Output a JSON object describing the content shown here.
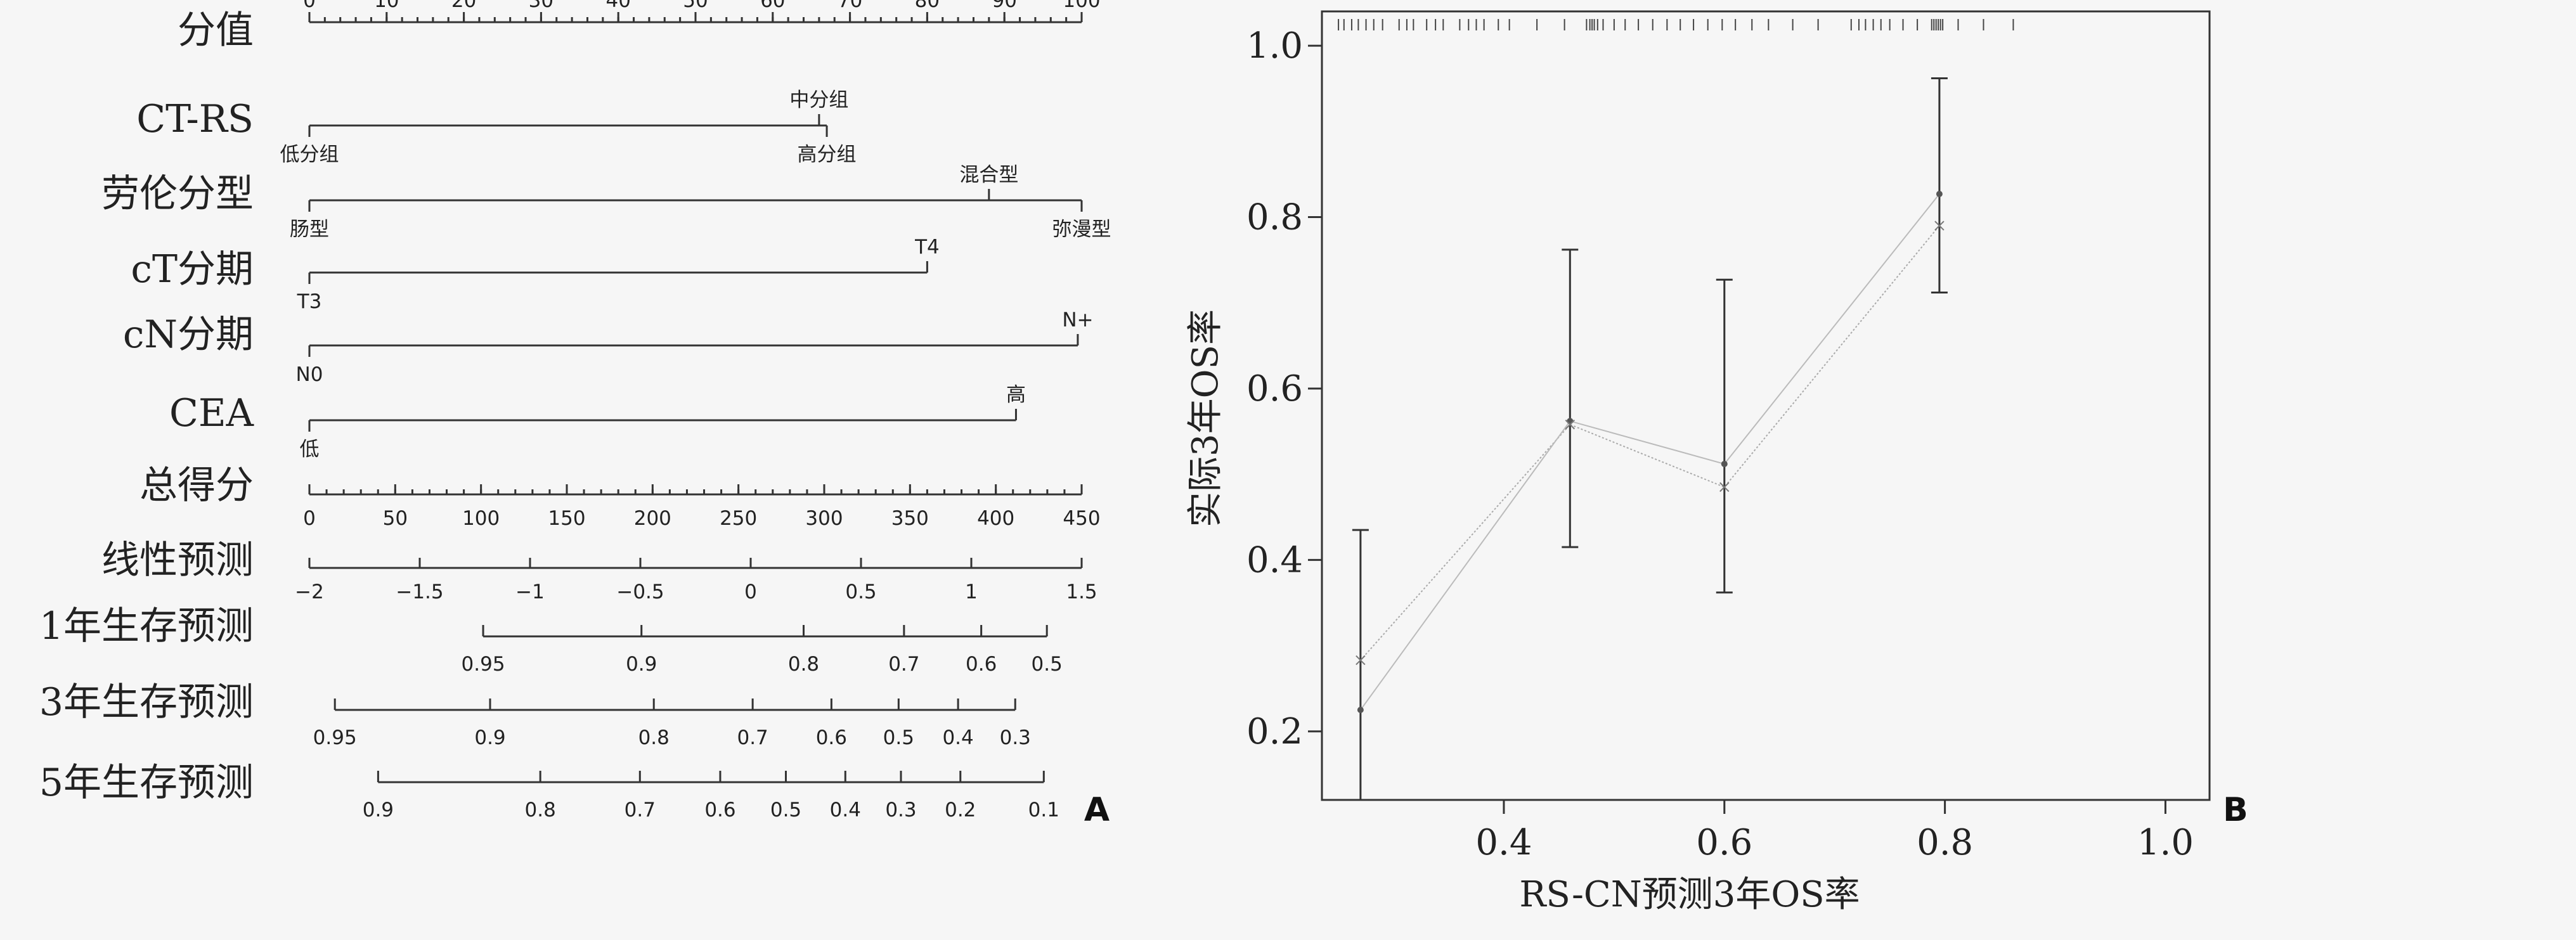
{
  "chart_data": [
    {
      "type": "nomogram",
      "panel_label": "A",
      "rows": [
        {
          "label": "分值",
          "kind": "axis",
          "min": 0,
          "max": 100,
          "major": [
            0,
            10,
            20,
            30,
            40,
            50,
            60,
            70,
            80,
            90,
            100
          ],
          "major_labels": [
            "0",
            "10",
            "20",
            "30",
            "40",
            "50",
            "60",
            "70",
            "80",
            "90",
            "100"
          ],
          "minor_step": 2,
          "label_side": "top"
        },
        {
          "label": "CT-RS",
          "kind": "variable",
          "levels": [
            {
              "name": "低分组",
              "points": 0,
              "side": "below"
            },
            {
              "name": "中分组",
              "points": 66,
              "side": "above"
            },
            {
              "name": "高分组",
              "points": 67,
              "side": "below"
            }
          ]
        },
        {
          "label": "劳伦分型",
          "kind": "variable",
          "levels": [
            {
              "name": "肠型",
              "points": 0,
              "side": "below"
            },
            {
              "name": "混合型",
              "points": 88,
              "side": "above"
            },
            {
              "name": "弥漫型",
              "points": 100,
              "side": "below"
            }
          ]
        },
        {
          "label": "cT分期",
          "kind": "variable",
          "levels": [
            {
              "name": "T3",
              "points": 0,
              "side": "below"
            },
            {
              "name": "T4",
              "points": 80,
              "side": "above"
            }
          ]
        },
        {
          "label": "cN分期",
          "kind": "variable",
          "levels": [
            {
              "name": "N0",
              "points": 0,
              "side": "below"
            },
            {
              "name": "N+",
              "points": 99.5,
              "side": "above"
            }
          ]
        },
        {
          "label": "CEA",
          "kind": "variable",
          "levels": [
            {
              "name": "低",
              "points": 0,
              "side": "below"
            },
            {
              "name": "高",
              "points": 91.5,
              "side": "above"
            }
          ]
        },
        {
          "label": "总得分",
          "kind": "axis",
          "min": 0,
          "max": 450,
          "major": [
            0,
            50,
            100,
            150,
            200,
            250,
            300,
            350,
            400,
            450
          ],
          "major_labels": [
            "0",
            "50",
            "100",
            "150",
            "200",
            "250",
            "300",
            "350",
            "400",
            "450"
          ],
          "minor_step": 10,
          "label_side": "bottom"
        },
        {
          "label": "线性预测",
          "kind": "axis",
          "min": -2,
          "max": 1.5,
          "major": [
            -2,
            -1.5,
            -1,
            -0.5,
            0,
            0.5,
            1,
            1.5
          ],
          "major_labels": [
            "−2",
            "−1.5",
            "−1",
            "−0.5",
            "0",
            "0.5",
            "1",
            "1.5"
          ],
          "minor_step": 0.5,
          "label_side": "bottom"
        },
        {
          "label": "1年生存预测",
          "kind": "prob",
          "ticks": [
            {
              "t": "0.95",
              "p": 22.5
            },
            {
              "t": "0.9",
              "p": 43
            },
            {
              "t": "0.8",
              "p": 64
            },
            {
              "t": "0.7",
              "p": 77
            },
            {
              "t": "0.6",
              "p": 87
            },
            {
              "t": "0.5",
              "p": 95.5
            }
          ]
        },
        {
          "label": "3年生存预测",
          "kind": "prob",
          "ticks": [
            {
              "t": "0.95",
              "p": 3.3
            },
            {
              "t": "0.9",
              "p": 23.4
            },
            {
              "t": "0.8",
              "p": 44.6
            },
            {
              "t": "0.7",
              "p": 57.4
            },
            {
              "t": "0.6",
              "p": 67.6
            },
            {
              "t": "0.5",
              "p": 76.3
            },
            {
              "t": "0.4",
              "p": 84
            },
            {
              "t": "0.3",
              "p": 91.4
            }
          ]
        },
        {
          "label": "5年生存预测",
          "kind": "prob",
          "ticks": [
            {
              "t": "0.9",
              "p": 8.9
            },
            {
              "t": "0.8",
              "p": 29.9
            },
            {
              "t": "0.7",
              "p": 42.8
            },
            {
              "t": "0.6",
              "p": 53.2
            },
            {
              "t": "0.5",
              "p": 61.7
            },
            {
              "t": "0.4",
              "p": 69.4
            },
            {
              "t": "0.3",
              "p": 76.6
            },
            {
              "t": "0.2",
              "p": 84.3
            },
            {
              "t": "0.1",
              "p": 95.1
            }
          ]
        }
      ]
    },
    {
      "type": "calibration",
      "panel_label": "B",
      "xlabel": "RS-CN预测3年OS率",
      "ylabel": "实际3年OS率",
      "xlim": [
        0.235,
        1.04
      ],
      "ylim": [
        0.12,
        1.04
      ],
      "xticks": [
        0.4,
        0.6,
        0.8,
        1.0
      ],
      "xtick_labels": [
        "0.4",
        "0.6",
        "0.8",
        "1.0"
      ],
      "yticks": [
        0.2,
        0.4,
        0.6,
        0.8,
        1.0
      ],
      "ytick_labels": [
        "0.2",
        "0.4",
        "0.6",
        "0.8",
        "1.0"
      ],
      "points": [
        {
          "x": 0.27,
          "observed": 0.225,
          "lower": 0.12,
          "upper": 0.435,
          "corrected": 0.283
        },
        {
          "x": 0.46,
          "observed": 0.562,
          "lower": 0.415,
          "upper": 0.762,
          "corrected": 0.558
        },
        {
          "x": 0.6,
          "observed": 0.512,
          "lower": 0.362,
          "upper": 0.727,
          "corrected": 0.485
        },
        {
          "x": 0.795,
          "observed": 0.827,
          "lower": 0.712,
          "upper": 0.962,
          "corrected": 0.79
        }
      ],
      "rug": [
        0.25,
        0.255,
        0.262,
        0.268,
        0.275,
        0.282,
        0.29,
        0.305,
        0.312,
        0.318,
        0.33,
        0.338,
        0.345,
        0.36,
        0.368,
        0.375,
        0.382,
        0.395,
        0.405,
        0.43,
        0.455,
        0.475,
        0.478,
        0.48,
        0.482,
        0.485,
        0.49,
        0.5,
        0.51,
        0.522,
        0.535,
        0.548,
        0.56,
        0.572,
        0.585,
        0.598,
        0.61,
        0.625,
        0.64,
        0.662,
        0.685,
        0.715,
        0.722,
        0.728,
        0.735,
        0.742,
        0.75,
        0.762,
        0.775,
        0.788,
        0.79,
        0.792,
        0.794,
        0.796,
        0.798,
        0.812,
        0.835,
        0.862
      ]
    }
  ]
}
